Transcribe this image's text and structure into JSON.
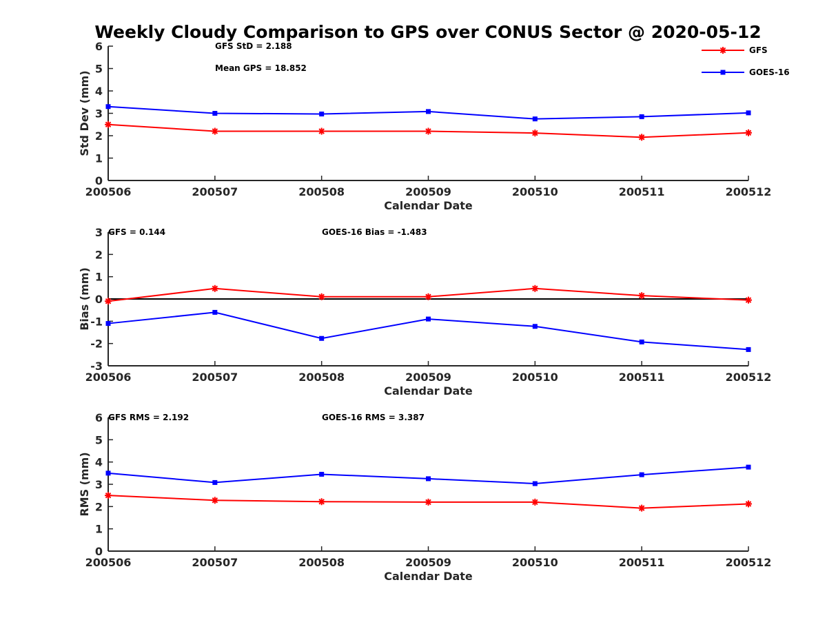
{
  "figure_title": "Weekly Cloudy Comparison to GPS over CONUS Sector @ 2020-05-12",
  "colors": {
    "GFS": "#ff0000",
    "GOES-16": "#0000ff",
    "zero_line": "#000000",
    "axes": "#262626"
  },
  "legend": {
    "position": "top-right",
    "entries": [
      {
        "label": "GFS",
        "color": "#ff0000",
        "marker": "asterisk"
      },
      {
        "label": "GOES-16",
        "color": "#0000ff",
        "marker": "square"
      }
    ]
  },
  "chart_data": [
    {
      "type": "line",
      "categories": [
        "200506",
        "200507",
        "200508",
        "200509",
        "200510",
        "200511",
        "200512"
      ],
      "xlabel": "Calendar Date",
      "ylabel": "Std Dev (mm)",
      "ylim": [
        0,
        6
      ],
      "yticks": [
        "0",
        "1",
        "2",
        "3",
        "4",
        "5",
        "6"
      ],
      "annotations": [
        "GFS StD = 2.188",
        "Mean GPS = 18.852"
      ],
      "series": [
        {
          "name": "GFS",
          "values": [
            2.5,
            2.2,
            2.2,
            2.2,
            2.12,
            1.93,
            2.13
          ]
        },
        {
          "name": "GOES-16",
          "values": [
            3.3,
            3.0,
            2.97,
            3.08,
            2.75,
            2.85,
            3.02
          ]
        }
      ]
    },
    {
      "type": "line",
      "categories": [
        "200506",
        "200507",
        "200508",
        "200509",
        "200510",
        "200511",
        "200512"
      ],
      "xlabel": "Calendar Date",
      "ylabel": "Bias (mm)",
      "ylim": [
        -3,
        3
      ],
      "yticks": [
        "-3",
        "-2",
        "-1",
        "0",
        "1",
        "2",
        "3"
      ],
      "zero_line": true,
      "annotations": [
        "GFS = 0.144",
        "GOES-16 Bias  = -1.483"
      ],
      "series": [
        {
          "name": "GFS",
          "values": [
            -0.1,
            0.47,
            0.1,
            0.1,
            0.47,
            0.15,
            -0.05
          ]
        },
        {
          "name": "GOES-16",
          "values": [
            -1.1,
            -0.6,
            -1.77,
            -0.9,
            -1.23,
            -1.93,
            -2.27
          ]
        }
      ]
    },
    {
      "type": "line",
      "categories": [
        "200506",
        "200507",
        "200508",
        "200509",
        "200510",
        "200511",
        "200512"
      ],
      "xlabel": "Calendar Date",
      "ylabel": "RMS (mm)",
      "ylim": [
        0,
        6
      ],
      "yticks": [
        "0",
        "1",
        "2",
        "3",
        "4",
        "5",
        "6"
      ],
      "annotations": [
        "GFS RMS = 2.192",
        "GOES-16 RMS = 3.387"
      ],
      "series": [
        {
          "name": "GFS",
          "values": [
            2.5,
            2.28,
            2.22,
            2.2,
            2.2,
            1.93,
            2.12
          ]
        },
        {
          "name": "GOES-16",
          "values": [
            3.5,
            3.08,
            3.45,
            3.25,
            3.03,
            3.43,
            3.77
          ]
        }
      ]
    }
  ]
}
